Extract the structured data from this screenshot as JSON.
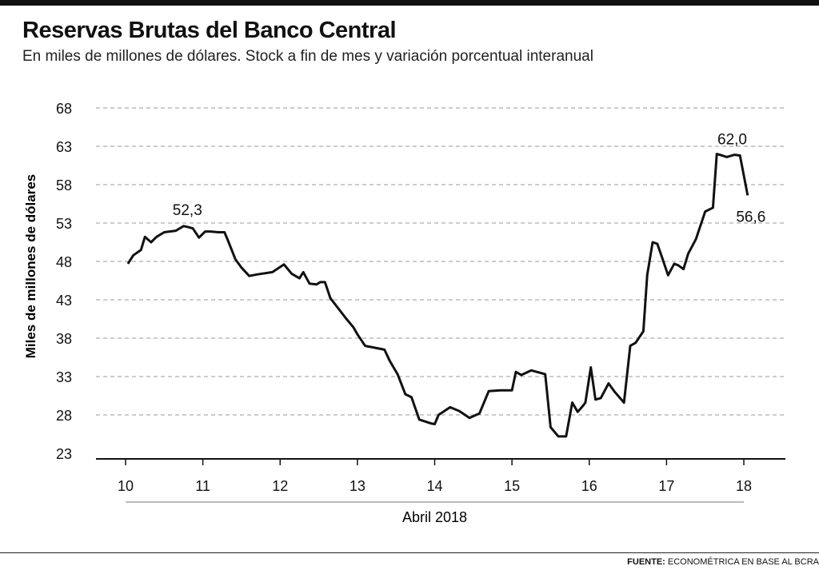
{
  "title": "Reservas Brutas del Banco Central",
  "subtitle": "En miles de millones de dólares. Stock a fin de mes y variación porcentual interanual",
  "source": {
    "label": "FUENTE:",
    "text": "ECONOMÉTRICA EN BASE AL BCRA"
  },
  "colors": {
    "line": "#111111",
    "grid": "#9a9a9a",
    "axis": "#111111"
  },
  "chart_data": {
    "type": "line",
    "title": "Reservas Brutas del Banco Central",
    "ylabel": "Miles de millones de dólares",
    "xlabel": "Abril 2018",
    "ylim": [
      23,
      68
    ],
    "yticks": [
      23,
      28,
      33,
      38,
      43,
      48,
      53,
      58,
      63,
      68
    ],
    "xlim": [
      10,
      18
    ],
    "xticks": [
      10,
      11,
      12,
      13,
      14,
      15,
      16,
      17,
      18
    ],
    "grid": true,
    "annotations": [
      {
        "label": "52,3",
        "x": 10.8,
        "y": 52.6
      },
      {
        "label": "62,0",
        "x": 17.85,
        "y": 62.0
      },
      {
        "label": "56,6",
        "x": 18.05,
        "y": 56.6
      }
    ],
    "series": [
      {
        "x": [
          10.03,
          10.1,
          10.2,
          10.25,
          10.33,
          10.4,
          10.5,
          10.65,
          10.75,
          10.8,
          10.87,
          10.95,
          11.03,
          11.1,
          11.2,
          11.28,
          11.33,
          11.42,
          11.5,
          11.6,
          11.7,
          11.9,
          12.05,
          12.15,
          12.25,
          12.3,
          12.38,
          12.47,
          12.52,
          12.58,
          12.65,
          12.72,
          12.85,
          12.95,
          13.0,
          13.1,
          13.2,
          13.35,
          13.42,
          13.52,
          13.62,
          13.7,
          13.8,
          13.95,
          14.0,
          14.05,
          14.2,
          14.32,
          14.45,
          14.58,
          14.7,
          14.85,
          14.95,
          15.0,
          15.05,
          15.12,
          15.25,
          15.43,
          15.5,
          15.6,
          15.7,
          15.78,
          15.85,
          15.92,
          15.95,
          16.02,
          16.08,
          16.15,
          16.25,
          16.33,
          16.45,
          16.53,
          16.6,
          16.7,
          16.75,
          16.82,
          16.88,
          16.95,
          17.02,
          17.1,
          17.15,
          17.22,
          17.28,
          17.38,
          17.5,
          17.6,
          17.65,
          17.72,
          17.78,
          17.88,
          17.95,
          18.05
        ],
        "values": [
          47.7,
          48.8,
          49.5,
          51.2,
          50.5,
          51.2,
          51.8,
          52.0,
          52.6,
          52.5,
          52.3,
          51.1,
          51.9,
          51.9,
          51.8,
          51.8,
          50.6,
          48.3,
          47.2,
          46.1,
          46.3,
          46.6,
          47.6,
          46.4,
          45.8,
          46.6,
          45.1,
          45.0,
          45.3,
          45.3,
          43.2,
          42.3,
          40.6,
          39.4,
          38.5,
          37.0,
          36.8,
          36.5,
          35.0,
          33.3,
          30.7,
          30.3,
          27.4,
          26.9,
          26.8,
          28.0,
          29.0,
          28.5,
          27.6,
          28.2,
          31.1,
          31.2,
          31.2,
          31.2,
          33.6,
          33.2,
          33.8,
          33.3,
          26.4,
          25.2,
          25.2,
          29.6,
          28.4,
          29.2,
          29.6,
          34.2,
          30.0,
          30.2,
          32.1,
          31.0,
          29.6,
          37.0,
          37.4,
          38.9,
          46.2,
          50.5,
          50.3,
          48.3,
          46.2,
          47.7,
          47.5,
          47.0,
          49.0,
          50.9,
          54.5,
          55.0,
          62.0,
          61.8,
          61.6,
          61.9,
          61.8,
          56.6
        ]
      }
    ]
  }
}
